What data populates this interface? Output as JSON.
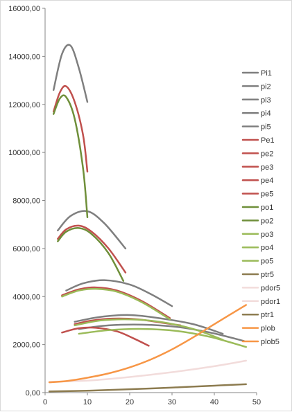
{
  "chart_data": {
    "type": "line",
    "title": "",
    "xlabel": "",
    "ylabel": "",
    "xlim": [
      0,
      50
    ],
    "ylim": [
      0,
      16000
    ],
    "x_ticks": [
      0,
      10,
      20,
      30,
      40,
      50
    ],
    "y_ticks": [
      0,
      2000,
      4000,
      6000,
      8000,
      10000,
      12000,
      14000,
      16000
    ],
    "x_tick_labels": [
      "0",
      "10",
      "20",
      "30",
      "40",
      "50"
    ],
    "y_tick_labels": [
      "0,00",
      "2000,00",
      "4000,00",
      "6000,00",
      "8000,00",
      "10000,00",
      "12000,00",
      "14000,00",
      "16000,00"
    ],
    "grid": false,
    "legend_position": "right",
    "series": [
      {
        "name": "Pi1",
        "color": "#7f7f7f",
        "x": [
          2,
          4,
          6,
          8,
          10
        ],
        "y": [
          12600,
          14100,
          14450,
          13500,
          12100
        ]
      },
      {
        "name": "pi2",
        "color": "#7f7f7f",
        "x": [
          3,
          6,
          10,
          14,
          19
        ],
        "y": [
          6750,
          7350,
          7550,
          7050,
          6000
        ]
      },
      {
        "name": "pi3",
        "color": "#7f7f7f",
        "x": [
          5,
          9,
          14,
          20,
          25,
          30
        ],
        "y": [
          4250,
          4550,
          4680,
          4500,
          4100,
          3600
        ]
      },
      {
        "name": "pi4",
        "color": "#7f7f7f",
        "x": [
          7,
          13,
          20,
          27,
          35,
          42
        ],
        "y": [
          2950,
          3150,
          3230,
          3100,
          2850,
          2450
        ]
      },
      {
        "name": "pi5",
        "color": "#7f7f7f",
        "x": [
          8,
          15,
          23,
          31,
          39,
          47
        ],
        "y": [
          2650,
          2800,
          2830,
          2740,
          2500,
          2150
        ]
      },
      {
        "name": "Pe1",
        "color": "#c0504d",
        "x": [
          2,
          3.5,
          5,
          7,
          9,
          10
        ],
        "y": [
          11700,
          12500,
          12750,
          12100,
          10700,
          9200
        ]
      },
      {
        "name": "pe2",
        "color": "#c0504d",
        "x": [
          3,
          5,
          8,
          11,
          15,
          19
        ],
        "y": [
          6400,
          6800,
          6950,
          6700,
          6000,
          5000
        ]
      },
      {
        "name": "pe3",
        "color": "#c0504d",
        "x": [
          4,
          8,
          12,
          17,
          23,
          29.5
        ],
        "y": [
          4050,
          4300,
          4380,
          4250,
          3800,
          3100
        ]
      },
      {
        "name": "pe4",
        "color": "#c0504d",
        "x": [
          7,
          11,
          16,
          22,
          28,
          32
        ],
        "y": [
          2850,
          3000,
          3080,
          3050,
          2900,
          2800
        ]
      },
      {
        "name": "pe5",
        "color": "#c0504d",
        "x": [
          4,
          8,
          12,
          17,
          21,
          24.5
        ],
        "y": [
          2500,
          2680,
          2700,
          2550,
          2250,
          1950
        ]
      },
      {
        "name": "po1",
        "color": "#6f8f3a",
        "x": [
          2,
          3.5,
          5,
          7,
          9,
          10
        ],
        "y": [
          11600,
          12250,
          12300,
          11400,
          9300,
          7300
        ]
      },
      {
        "name": "po2",
        "color": "#6f8f3a",
        "x": [
          3,
          5,
          8,
          11,
          15,
          18.5
        ],
        "y": [
          6300,
          6700,
          6850,
          6600,
          5800,
          4650
        ]
      },
      {
        "name": "po3",
        "color": "#9bbb59",
        "x": [
          4,
          8,
          12,
          17,
          23,
          29.5
        ],
        "y": [
          4000,
          4250,
          4320,
          4200,
          3750,
          3050
        ]
      },
      {
        "name": "po4",
        "color": "#9bbb59",
        "x": [
          7,
          13,
          20,
          27,
          35,
          42
        ],
        "y": [
          2800,
          3000,
          3050,
          2950,
          2650,
          2200
        ]
      },
      {
        "name": "po5",
        "color": "#9bbb59",
        "x": [
          8,
          15,
          23,
          31,
          39,
          47.5
        ],
        "y": [
          2450,
          2600,
          2650,
          2570,
          2320,
          1900
        ]
      },
      {
        "name": "ptr5",
        "color": "#8c7b4f",
        "x": [
          1,
          10,
          20,
          30,
          40,
          47.5
        ],
        "y": [
          50,
          80,
          140,
          210,
          290,
          350
        ]
      },
      {
        "name": "pdor5",
        "color": "#f2dcdb",
        "x": [
          1,
          10,
          20,
          30,
          40,
          47.5
        ],
        "y": [
          450,
          500,
          650,
          850,
          1100,
          1330
        ]
      },
      {
        "name": "pdor1",
        "color": "#f2dcdb",
        "x": [],
        "y": []
      },
      {
        "name": "ptr1",
        "color": "#8c7b4f",
        "x": [],
        "y": []
      },
      {
        "name": "plob",
        "color": "#f79646",
        "x": [
          1,
          5,
          10,
          15,
          20,
          25,
          30,
          35,
          40,
          47.5
        ],
        "y": [
          430,
          480,
          620,
          800,
          1050,
          1380,
          1800,
          2300,
          2850,
          3650
        ]
      },
      {
        "name": "plob5",
        "color": "#f79646",
        "x": [],
        "y": []
      }
    ]
  }
}
